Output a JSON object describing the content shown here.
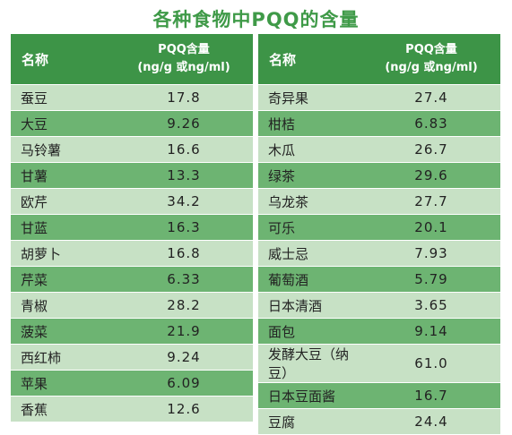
{
  "title": "各种食物中PQQ的含量",
  "header": {
    "name": "名称",
    "value_line1": "PQQ含量",
    "value_line2": "(ng/g 或ng/ml)"
  },
  "left_table": [
    {
      "name": "蚕豆",
      "value": "17.8"
    },
    {
      "name": "大豆",
      "value": "9.26"
    },
    {
      "name": "马铃薯",
      "value": "16.6"
    },
    {
      "name": "甘薯",
      "value": "13.3"
    },
    {
      "name": "欧芹",
      "value": "34.2"
    },
    {
      "name": "甘蓝",
      "value": "16.3"
    },
    {
      "name": "胡萝卜",
      "value": "16.8"
    },
    {
      "name": "芹菜",
      "value": "6.33"
    },
    {
      "name": "青椒",
      "value": "28.2"
    },
    {
      "name": "菠菜",
      "value": "21.9"
    },
    {
      "name": "西红柿",
      "value": "9.24"
    },
    {
      "name": "苹果",
      "value": "6.09"
    },
    {
      "name": "香蕉",
      "value": "12.6"
    }
  ],
  "right_table": [
    {
      "name": "奇异果",
      "value": "27.4"
    },
    {
      "name": "柑桔",
      "value": "6.83"
    },
    {
      "name": "木瓜",
      "value": "26.7"
    },
    {
      "name": "绿茶",
      "value": "29.6"
    },
    {
      "name": "乌龙茶",
      "value": "27.7"
    },
    {
      "name": "可乐",
      "value": "20.1"
    },
    {
      "name": "威士忌",
      "value": "7.93"
    },
    {
      "name": "葡萄酒",
      "value": "5.79"
    },
    {
      "name": "日本清酒",
      "value": "3.65"
    },
    {
      "name": "面包",
      "value": "9.14"
    },
    {
      "name": "发酵大豆（纳豆）",
      "value": "61.0"
    },
    {
      "name": "日本豆面酱",
      "value": "16.7"
    },
    {
      "name": "豆腐",
      "value": "24.4"
    }
  ]
}
